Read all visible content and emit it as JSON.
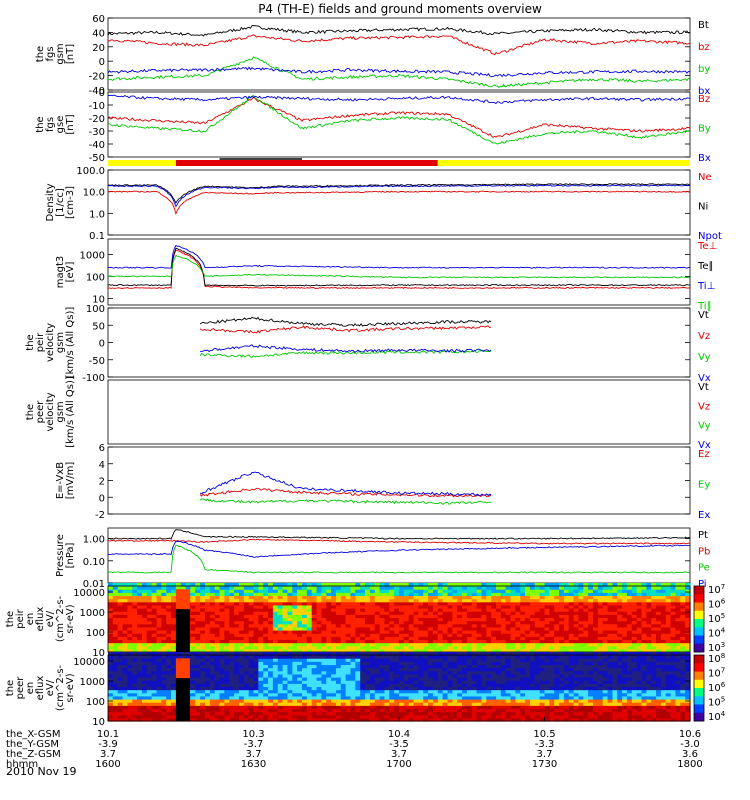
{
  "title": "P4 (TH-E) fields and ground moments overview",
  "date_label": "2010 Nov 19",
  "colors": {
    "black": "#000000",
    "red": "#e00000",
    "green": "#00c800",
    "blue": "#0000e0",
    "yellow": "#ffff00"
  },
  "chart_data": [
    {
      "type": "line",
      "panel": "fgs_gsm",
      "ylabel": [
        "the",
        "fgs",
        "gsm",
        "[nT]"
      ],
      "ylim": [
        -40,
        60
      ],
      "yticks": [
        "60",
        "40",
        "20",
        "0",
        "-20",
        "-40"
      ],
      "series": [
        {
          "name": "Bt",
          "color": "black",
          "x": [
            "1600",
            "1610",
            "1620",
            "1630",
            "1640",
            "1650",
            "1700",
            "1710",
            "1720",
            "1730",
            "1740",
            "1750",
            "1800"
          ],
          "values": [
            38,
            40,
            36,
            48,
            40,
            42,
            44,
            45,
            38,
            42,
            44,
            40,
            40
          ]
        },
        {
          "name": "bz",
          "color": "red",
          "x": [
            "1600",
            "1610",
            "1620",
            "1630",
            "1640",
            "1650",
            "1700",
            "1710",
            "1720",
            "1730",
            "1740",
            "1750",
            "1800"
          ],
          "values": [
            30,
            25,
            22,
            35,
            28,
            32,
            33,
            35,
            10,
            30,
            25,
            28,
            25
          ]
        },
        {
          "name": "by",
          "color": "green",
          "x": [
            "1600",
            "1610",
            "1620",
            "1630",
            "1640",
            "1650",
            "1700",
            "1710",
            "1720",
            "1730",
            "1740",
            "1750",
            "1800"
          ],
          "values": [
            -25,
            -22,
            -20,
            5,
            -25,
            -22,
            -20,
            -25,
            -35,
            -30,
            -25,
            -28,
            -25
          ]
        },
        {
          "name": "bx",
          "color": "blue",
          "x": [
            "1600",
            "1610",
            "1620",
            "1630",
            "1640",
            "1650",
            "1700",
            "1710",
            "1720",
            "1730",
            "1740",
            "1750",
            "1800"
          ],
          "values": [
            -15,
            -13,
            -12,
            -10,
            -15,
            -12,
            -14,
            -15,
            -20,
            -16,
            -15,
            -14,
            -15
          ]
        }
      ]
    },
    {
      "type": "line",
      "panel": "fgs_gse",
      "ylabel": [
        "the",
        "fgs",
        "gse",
        "[nT]"
      ],
      "ylim": [
        -50,
        0
      ],
      "yticks": [
        "0",
        "-10",
        "-20",
        "-30",
        "-40",
        "-50"
      ],
      "series": [
        {
          "name": "Bz",
          "color": "red",
          "x": [
            "1600",
            "1610",
            "1620",
            "1630",
            "1640",
            "1650",
            "1700",
            "1710",
            "1720",
            "1730",
            "1740",
            "1750",
            "1800"
          ],
          "values": [
            -20,
            -22,
            -24,
            -5,
            -22,
            -18,
            -16,
            -17,
            -35,
            -25,
            -28,
            -30,
            -28
          ]
        },
        {
          "name": "By",
          "color": "green",
          "x": [
            "1600",
            "1610",
            "1620",
            "1630",
            "1640",
            "1650",
            "1700",
            "1710",
            "1720",
            "1730",
            "1740",
            "1750",
            "1800"
          ],
          "values": [
            -25,
            -28,
            -30,
            -3,
            -28,
            -22,
            -20,
            -21,
            -40,
            -32,
            -30,
            -35,
            -30
          ]
        },
        {
          "name": "Bx",
          "color": "blue",
          "x": [
            "1600",
            "1610",
            "1620",
            "1630",
            "1640",
            "1650",
            "1700",
            "1710",
            "1720",
            "1730",
            "1740",
            "1750",
            "1800"
          ],
          "values": [
            -3,
            -5,
            -6,
            -4,
            -5,
            -6,
            -5,
            -4,
            -8,
            -6,
            -5,
            -6,
            -5
          ]
        }
      ]
    },
    {
      "type": "line",
      "panel": "density",
      "ylabel": [
        "Density",
        "[1/cc]",
        "[cm-3]"
      ],
      "yscale": "log",
      "ylim": [
        0.1,
        100
      ],
      "yticks": [
        "100.0",
        "10.0",
        "1.0",
        "0.1"
      ],
      "series": [
        {
          "name": "Ne",
          "color": "red",
          "x": [
            "1600",
            "1610",
            "1614",
            "1620",
            "1630",
            "1635",
            "1640",
            "1700",
            "1730",
            "1800"
          ],
          "values": [
            10,
            10,
            1.0,
            9,
            8,
            9,
            9,
            10,
            10,
            10
          ]
        },
        {
          "name": "Ni",
          "color": "black",
          "x": [
            "1600",
            "1610",
            "1614",
            "1620",
            "1630",
            "1635",
            "1640",
            "1700",
            "1730",
            "1800"
          ],
          "values": [
            20,
            20,
            3,
            18,
            15,
            18,
            18,
            20,
            22,
            22
          ]
        },
        {
          "name": "Npot",
          "color": "blue",
          "x": [
            "1600",
            "1610",
            "1614",
            "1620",
            "1630",
            "1635",
            "1640",
            "1700",
            "1730",
            "1800"
          ],
          "values": [
            18,
            18,
            2,
            16,
            14,
            16,
            16,
            18,
            19,
            19
          ]
        }
      ]
    },
    {
      "type": "line",
      "panel": "temperature",
      "ylabel": [
        "magt3",
        "[eV]"
      ],
      "yscale": "log",
      "ylim": [
        5,
        5000
      ],
      "yticks": [
        "1000",
        "100",
        "10"
      ],
      "series": [
        {
          "name": "Te⊥",
          "color": "red",
          "x": [
            "1600",
            "1613",
            "1614",
            "1620",
            "1630",
            "1700",
            "1800"
          ],
          "values": [
            30,
            30,
            1500,
            35,
            30,
            30,
            30
          ]
        },
        {
          "name": "Te∥",
          "color": "black",
          "x": [
            "1600",
            "1613",
            "1614",
            "1620",
            "1630",
            "1700",
            "1800"
          ],
          "values": [
            40,
            40,
            1800,
            40,
            38,
            40,
            40
          ]
        },
        {
          "name": "Ti⊥",
          "color": "blue",
          "x": [
            "1600",
            "1613",
            "1614",
            "1620",
            "1630",
            "1700",
            "1800"
          ],
          "values": [
            250,
            250,
            2500,
            250,
            300,
            250,
            250
          ]
        },
        {
          "name": "Ti∥",
          "color": "green",
          "x": [
            "1600",
            "1613",
            "1614",
            "1620",
            "1630",
            "1700",
            "1800"
          ],
          "values": [
            100,
            100,
            900,
            100,
            120,
            90,
            90
          ]
        }
      ]
    },
    {
      "type": "line",
      "panel": "peir_velocity",
      "ylabel": [
        "the",
        "peir",
        "velocity",
        "gsm",
        "[km/s (All Qs)]"
      ],
      "ylim": [
        -100,
        100
      ],
      "yticks": [
        "100",
        "50",
        "0",
        "-50",
        "-100"
      ],
      "series": [
        {
          "name": "Vt",
          "color": "black",
          "x": [
            "1619",
            "1630",
            "1640",
            "1650",
            "1700",
            "1710",
            "1719"
          ],
          "values": [
            55,
            70,
            55,
            50,
            55,
            60,
            60
          ]
        },
        {
          "name": "Vz",
          "color": "red",
          "x": [
            "1619",
            "1630",
            "1640",
            "1650",
            "1700",
            "1710",
            "1719"
          ],
          "values": [
            40,
            30,
            45,
            35,
            40,
            42,
            45
          ]
        },
        {
          "name": "Vy",
          "color": "green",
          "x": [
            "1619",
            "1630",
            "1640",
            "1650",
            "1700",
            "1710",
            "1719"
          ],
          "values": [
            -35,
            -40,
            -30,
            -30,
            -28,
            -28,
            -25
          ]
        },
        {
          "name": "Vx",
          "color": "blue",
          "x": [
            "1619",
            "1630",
            "1640",
            "1650",
            "1700",
            "1710",
            "1719"
          ],
          "values": [
            -25,
            -10,
            -20,
            -25,
            -22,
            -24,
            -22
          ]
        }
      ]
    },
    {
      "type": "line",
      "panel": "peer_velocity",
      "ylabel": [
        "the",
        "peer",
        "velocity",
        "gsm",
        "[km/s (All Qs)]"
      ],
      "series": [
        {
          "name": "Vt",
          "color": "black",
          "values": []
        },
        {
          "name": "Vz",
          "color": "red",
          "values": []
        },
        {
          "name": "Vy",
          "color": "green",
          "values": []
        },
        {
          "name": "Vx",
          "color": "blue",
          "values": []
        }
      ]
    },
    {
      "type": "line",
      "panel": "efield",
      "ylabel": [
        "E=-VxB",
        "[mV/m]"
      ],
      "ylim": [
        -2,
        6
      ],
      "yticks": [
        "6",
        "4",
        "2",
        "0",
        "-2"
      ],
      "series": [
        {
          "name": "Ez",
          "color": "red",
          "x": [
            "1619",
            "1630",
            "1640",
            "1650",
            "1700",
            "1710",
            "1719"
          ],
          "values": [
            0.2,
            1.0,
            0.6,
            0.4,
            0.3,
            0.2,
            0.2
          ]
        },
        {
          "name": "Ey",
          "color": "green",
          "x": [
            "1619",
            "1630",
            "1640",
            "1650",
            "1700",
            "1710",
            "1719"
          ],
          "values": [
            -0.3,
            -0.6,
            -0.4,
            -0.5,
            -0.6,
            -0.7,
            -0.6
          ]
        },
        {
          "name": "Ex",
          "color": "blue",
          "x": [
            "1619",
            "1630",
            "1640",
            "1650",
            "1700",
            "1710",
            "1719"
          ],
          "values": [
            0.5,
            3.0,
            1.0,
            0.8,
            0.5,
            0.4,
            0.3
          ]
        }
      ]
    },
    {
      "type": "line",
      "panel": "pressure",
      "ylabel": [
        "Pressure",
        "[nPa]"
      ],
      "yscale": "log",
      "ylim": [
        0.01,
        3
      ],
      "yticks": [
        "1.00",
        "0.10",
        "0.01"
      ],
      "series": [
        {
          "name": "Pt",
          "color": "black",
          "x": [
            "1600",
            "1613",
            "1614",
            "1620",
            "1630",
            "1700",
            "1730",
            "1800"
          ],
          "values": [
            1.0,
            1.0,
            2.5,
            1.2,
            1.2,
            1.0,
            1.0,
            1.1
          ]
        },
        {
          "name": "Pb",
          "color": "red",
          "x": [
            "1600",
            "1613",
            "1614",
            "1620",
            "1630",
            "1700",
            "1730",
            "1800"
          ],
          "values": [
            0.8,
            0.8,
            0.8,
            0.7,
            0.9,
            0.7,
            0.6,
            0.6
          ]
        },
        {
          "name": "Pe",
          "color": "green",
          "x": [
            "1600",
            "1613",
            "1614",
            "1620",
            "1630",
            "1700",
            "1730",
            "1800"
          ],
          "values": [
            0.03,
            0.03,
            0.5,
            0.04,
            0.03,
            0.03,
            0.03,
            0.03
          ]
        },
        {
          "name": "Pi",
          "color": "blue",
          "x": [
            "1600",
            "1613",
            "1614",
            "1620",
            "1630",
            "1700",
            "1730",
            "1800"
          ],
          "values": [
            0.2,
            0.2,
            0.8,
            0.3,
            0.15,
            0.3,
            0.4,
            0.5
          ]
        }
      ]
    },
    {
      "type": "heatmap",
      "panel": "peir_spectrogram",
      "ylabel": [
        "the",
        "peir",
        "en",
        "eflux",
        "eV/",
        "(cm^2-s-",
        "sr-eV)"
      ],
      "yscale": "log",
      "ylim": [
        10,
        20000
      ],
      "yticks": [
        "10000",
        "1000",
        "100",
        "10"
      ],
      "colorbar_ticks": [
        "10^7",
        "10^6",
        "10^5",
        "10^4",
        "10^3"
      ]
    },
    {
      "type": "heatmap",
      "panel": "peer_spectrogram",
      "ylabel": [
        "the",
        "peer",
        "en",
        "eflux",
        "eV/",
        "(cm^2-s-",
        "sr-eV)"
      ],
      "yscale": "log",
      "ylim": [
        10,
        20000
      ],
      "yticks": [
        "10000",
        "1000",
        "100",
        "10"
      ],
      "colorbar_ticks": [
        "10^8",
        "10^7",
        "10^6",
        "10^5",
        "10^4"
      ]
    }
  ],
  "x_axis": {
    "rows": [
      {
        "label": "the_X-GSM",
        "values": [
          "10.1",
          "10.3",
          "10.4",
          "10.5",
          "10.6"
        ]
      },
      {
        "label": "the_Y-GSM",
        "values": [
          "-3.9",
          "-3.7",
          "-3.5",
          "-3.3",
          "-3.0"
        ]
      },
      {
        "label": "the_Z-GSM",
        "values": [
          "3.7",
          "3.7",
          "3.7",
          "3.7",
          "3.6"
        ]
      },
      {
        "label": "hhmm",
        "values": [
          "1600",
          "1630",
          "1700",
          "1730",
          "1800"
        ]
      }
    ]
  }
}
